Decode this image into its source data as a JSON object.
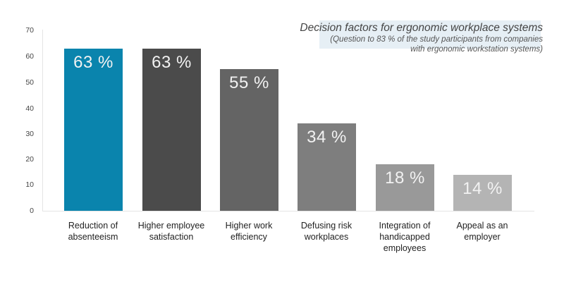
{
  "chart_data": {
    "type": "bar",
    "title": "Decision factors for ergonomic workplace systems",
    "subtitle": "(Question to 83 % of the study participants from companies with ergonomic workstation systems)",
    "xlabel": "",
    "ylabel": "",
    "ylim": [
      0,
      70
    ],
    "yticks": [
      0,
      10,
      20,
      30,
      40,
      50,
      60,
      70
    ],
    "grid": false,
    "legend": null,
    "categories": [
      "Reduction of absenteeism",
      "Higher employee satisfaction",
      "Higher work efficiency",
      "Defusing risk workplaces",
      "Integration of handicapped employees",
      "Appeal as an employer"
    ],
    "values": [
      63,
      63,
      55,
      34,
      18,
      14
    ],
    "value_labels": [
      "63 %",
      "63 %",
      "55 %",
      "34 %",
      "18 %",
      "14 %"
    ],
    "colors": [
      "#0a84ad",
      "#4b4b4b",
      "#646464",
      "#7e7e7e",
      "#999999",
      "#b4b4b4"
    ]
  },
  "header": {
    "title": "Decision factors for ergonomic workplace systems",
    "subtitle_line1": "(Question to 83 % of the study participants from companies",
    "subtitle_line2": "with ergonomic workstation systems)"
  },
  "axis": {
    "ticks": [
      "70",
      "60",
      "50",
      "40",
      "30",
      "20",
      "10",
      "0"
    ]
  },
  "bars": [
    {
      "label_line1": "Reduction of",
      "label_line2": "absenteeism",
      "label_line3": "",
      "value_label": "63 %"
    },
    {
      "label_line1": "Higher employee",
      "label_line2": "satisfaction",
      "label_line3": "",
      "value_label": "63 %"
    },
    {
      "label_line1": "Higher work",
      "label_line2": "efficiency",
      "label_line3": "",
      "value_label": "55 %"
    },
    {
      "label_line1": "Defusing risk",
      "label_line2": "workplaces",
      "label_line3": "",
      "value_label": "34 %"
    },
    {
      "label_line1": "Integration of",
      "label_line2": "handicapped",
      "label_line3": "employees",
      "value_label": "18 %"
    },
    {
      "label_line1": "Appeal as an",
      "label_line2": "employer",
      "label_line3": "",
      "value_label": "14 %"
    }
  ]
}
